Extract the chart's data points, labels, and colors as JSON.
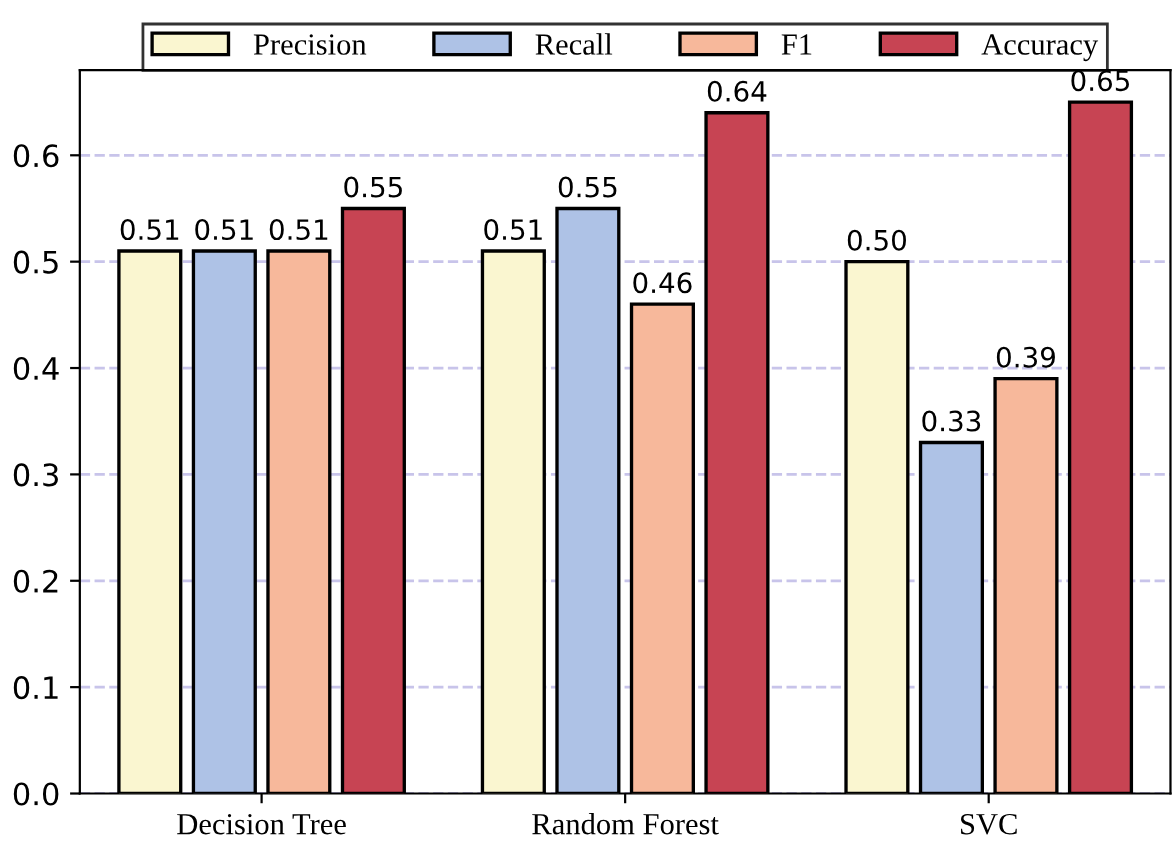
{
  "chart_data": {
    "type": "bar",
    "categories": [
      "Decision Tree",
      "Random Forest",
      "SVC"
    ],
    "series": [
      {
        "name": "Precision",
        "color": "#faf6d0",
        "values": [
          0.51,
          0.51,
          0.5
        ],
        "value_labels": [
          "0.51",
          "0.51",
          "0.50"
        ]
      },
      {
        "name": "Recall",
        "color": "#aec2e6",
        "values": [
          0.51,
          0.55,
          0.33
        ],
        "value_labels": [
          "0.51",
          "0.55",
          "0.33"
        ]
      },
      {
        "name": "F1",
        "color": "#f7b89b",
        "values": [
          0.51,
          0.46,
          0.39
        ],
        "value_labels": [
          "0.51",
          "0.46",
          "0.39"
        ]
      },
      {
        "name": "Accuracy",
        "color": "#c74453",
        "values": [
          0.55,
          0.64,
          0.65
        ],
        "value_labels": [
          "0.55",
          "0.64",
          "0.65"
        ]
      }
    ],
    "ylim": [
      0,
      0.68
    ],
    "yticks": [
      {
        "value": 0,
        "label": "0.0"
      },
      0.1,
      0.2,
      0.3,
      0.4,
      0.5,
      0.6
    ],
    "grid": "y",
    "legend": "top"
  }
}
